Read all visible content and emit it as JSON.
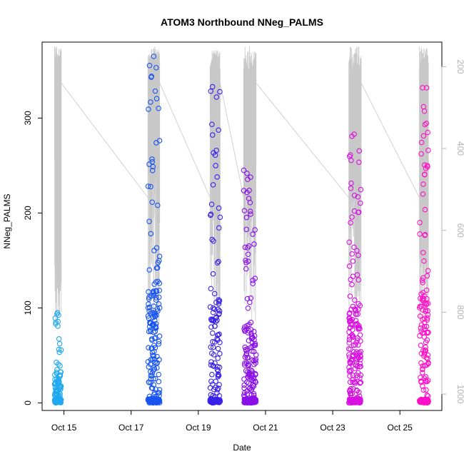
{
  "chart_data": {
    "type": "scatter",
    "title": "ATOM3 Northbound NNeg_PALMS",
    "xlabel": "Date",
    "ylabel": "NNeg_PALMS",
    "xlim": [
      14.35,
      26.25
    ],
    "ylim": [
      -8,
      380
    ],
    "x_ticks": [
      {
        "value": 15,
        "label": "Oct 15"
      },
      {
        "value": 17,
        "label": "Oct 17"
      },
      {
        "value": 19,
        "label": "Oct 19"
      },
      {
        "value": 21,
        "label": "Oct 21"
      },
      {
        "value": 23,
        "label": "Oct 23"
      },
      {
        "value": 25,
        "label": "Oct 25"
      }
    ],
    "y_ticks": [
      0,
      100,
      200,
      300
    ],
    "y2_ticks": [
      200,
      400,
      600,
      800,
      1000
    ],
    "y2_lim": [
      1040,
      140
    ],
    "secondary_series_color": "#c8c8c8",
    "grid": false,
    "flights": [
      {
        "t0": 14.72,
        "t1": 14.92,
        "color": "#1fa8f0",
        "n": 110,
        "max": 95
      },
      {
        "t0": 17.5,
        "t1": 17.85,
        "color": "#1a55f0",
        "n": 230,
        "max": 365
      },
      {
        "t0": 19.35,
        "t1": 19.65,
        "color": "#3a22ea",
        "n": 160,
        "max": 333
      },
      {
        "t0": 20.35,
        "t1": 20.72,
        "color": "#8a10e8",
        "n": 230,
        "max": 245
      },
      {
        "t0": 23.48,
        "t1": 23.85,
        "color": "#d812e0",
        "n": 240,
        "max": 283
      },
      {
        "t0": 25.58,
        "t1": 25.85,
        "color": "#ff10c8",
        "n": 180,
        "max": 332
      }
    ]
  }
}
